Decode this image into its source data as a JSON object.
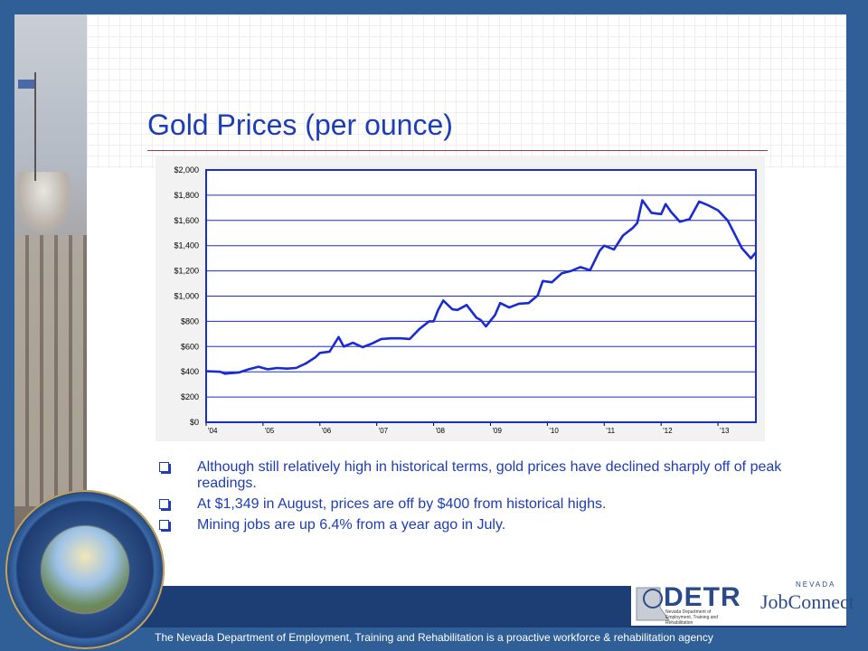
{
  "slide": {
    "title": "Gold Prices (per ounce)",
    "bullets": [
      "Although still relatively high in historical terms, gold prices have declined sharply off of peak readings.",
      "At $1,349 in August, prices are off by $400 from historical highs.",
      "Mining jobs are up 6.4% from a year ago in July."
    ],
    "footer": "The Nevada Department of Employment, Training and Rehabilitation is a proactive workforce & rehabilitation agency"
  },
  "logos": {
    "detr": "DETR",
    "detr_sub": "Nevada Department of Employment, Training and Rehabilitation",
    "jobconnect_top": "NEVADA",
    "jobconnect": "JobConnect",
    "seal": "THE GREAT SEAL OF THE STATE OF NEVADA · ALL FOR OUR COUNTRY"
  },
  "colors": {
    "title": "#1d3cb8",
    "line": "#1a2bd1",
    "frame": "#1a2bd1",
    "background": "#2f5f96"
  },
  "chart_data": {
    "type": "line",
    "title": "",
    "xlabel": "",
    "ylabel": "",
    "ylim": [
      0,
      2000
    ],
    "xlim": [
      2004.0,
      2013.6667
    ],
    "yticks": [
      0,
      200,
      400,
      600,
      800,
      1000,
      1200,
      1400,
      1600,
      1800,
      2000
    ],
    "ytick_labels": [
      "$0",
      "$200",
      "$400",
      "$600",
      "$800",
      "$1,000",
      "$1,200",
      "$1,400",
      "$1,600",
      "$1,800",
      "$2,000"
    ],
    "xticks": [
      2004,
      2005,
      2006,
      2007,
      2008,
      2009,
      2010,
      2011,
      2012,
      2013
    ],
    "xtick_labels": [
      "'04",
      "'05",
      "'06",
      "'07",
      "'08",
      "'09",
      "'10",
      "'11",
      "'12",
      "'13"
    ],
    "grid": "horizontal",
    "legend": "none",
    "series": [
      {
        "x": [
          2004.0,
          2004.25,
          2004.33,
          2004.58,
          2004.75,
          2004.92,
          2005.08,
          2005.25,
          2005.42,
          2005.58,
          2005.75,
          2005.92,
          2006.0,
          2006.17,
          2006.33,
          2006.42,
          2006.58,
          2006.75,
          2006.92,
          2007.08,
          2007.25,
          2007.42,
          2007.58,
          2007.75,
          2007.92,
          2008.0,
          2008.08,
          2008.17,
          2008.33,
          2008.42,
          2008.58,
          2008.75,
          2008.83,
          2008.92,
          2009.08,
          2009.17,
          2009.33,
          2009.5,
          2009.67,
          2009.83,
          2009.92,
          2010.08,
          2010.25,
          2010.42,
          2010.58,
          2010.75,
          2010.92,
          2011.0,
          2011.17,
          2011.33,
          2011.5,
          2011.58,
          2011.67,
          2011.83,
          2012.0,
          2012.08,
          2012.17,
          2012.33,
          2012.5,
          2012.67,
          2012.83,
          2013.0,
          2013.17,
          2013.33,
          2013.42,
          2013.58,
          2013.67
        ],
        "values": [
          405,
          400,
          385,
          395,
          420,
          440,
          420,
          430,
          425,
          430,
          465,
          515,
          550,
          560,
          675,
          600,
          630,
          595,
          625,
          660,
          665,
          665,
          660,
          740,
          800,
          800,
          890,
          965,
          895,
          890,
          930,
          830,
          810,
          760,
          850,
          945,
          910,
          940,
          945,
          1005,
          1120,
          1110,
          1180,
          1200,
          1230,
          1205,
          1360,
          1400,
          1370,
          1480,
          1540,
          1580,
          1760,
          1660,
          1650,
          1730,
          1670,
          1590,
          1610,
          1750,
          1720,
          1680,
          1600,
          1460,
          1380,
          1300,
          1349
        ]
      }
    ]
  }
}
